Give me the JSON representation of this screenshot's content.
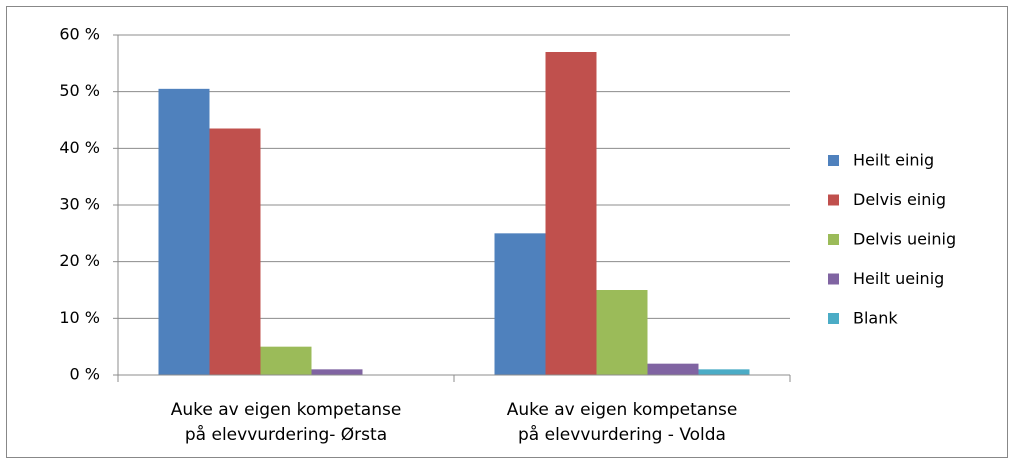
{
  "chart_data": {
    "type": "bar",
    "categories": [
      "Auke av eigen kompetanse\npå elevvurdering- Ørsta",
      "Auke av eigen kompetanse\npå elevvurdering - Volda"
    ],
    "series": [
      {
        "name": "Heilt einig",
        "color": "#4f81bd",
        "values": [
          50.5,
          25
        ]
      },
      {
        "name": "Delvis einig",
        "color": "#c0504d",
        "values": [
          43.5,
          57
        ]
      },
      {
        "name": "Delvis ueinig",
        "color": "#9bbb59",
        "values": [
          5,
          15
        ]
      },
      {
        "name": "Heilt ueinig",
        "color": "#8064a2",
        "values": [
          1,
          2
        ]
      },
      {
        "name": "Blank",
        "color": "#4bacc6",
        "values": [
          0,
          1
        ]
      }
    ],
    "ylim": [
      0,
      60
    ],
    "yticks": [
      {
        "value": 0,
        "label": "0 %"
      },
      {
        "value": 10,
        "label": "10 %"
      },
      {
        "value": 20,
        "label": "20 %"
      },
      {
        "value": 30,
        "label": "30 %"
      },
      {
        "value": 40,
        "label": "40 %"
      },
      {
        "value": 50,
        "label": "50 %"
      },
      {
        "value": 60,
        "label": "60 %"
      }
    ],
    "grid": true,
    "legend": "right"
  }
}
